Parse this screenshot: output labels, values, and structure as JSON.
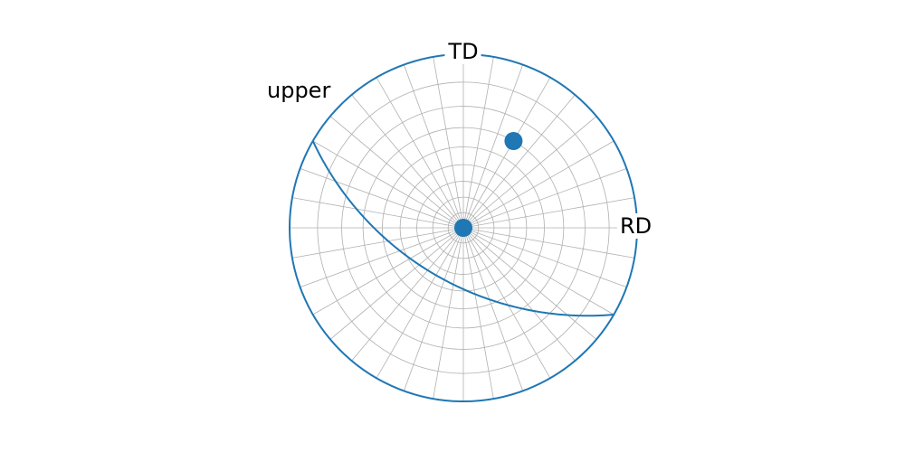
{
  "chart_data": {
    "type": "stereographic",
    "hemisphere": "upper",
    "x_direction_label": "RD",
    "y_direction_label": "TD",
    "grid": true,
    "grid_polar_step": 10,
    "grid_azimuth_step": 10,
    "color": "#1f77b4",
    "vectors": {
      "azimuth": [
        0,
        60
      ],
      "polar": [
        0,
        60
      ]
    },
    "great_circles": {
      "azimuth": [
        60
      ],
      "polar": [
        55
      ]
    }
  }
}
